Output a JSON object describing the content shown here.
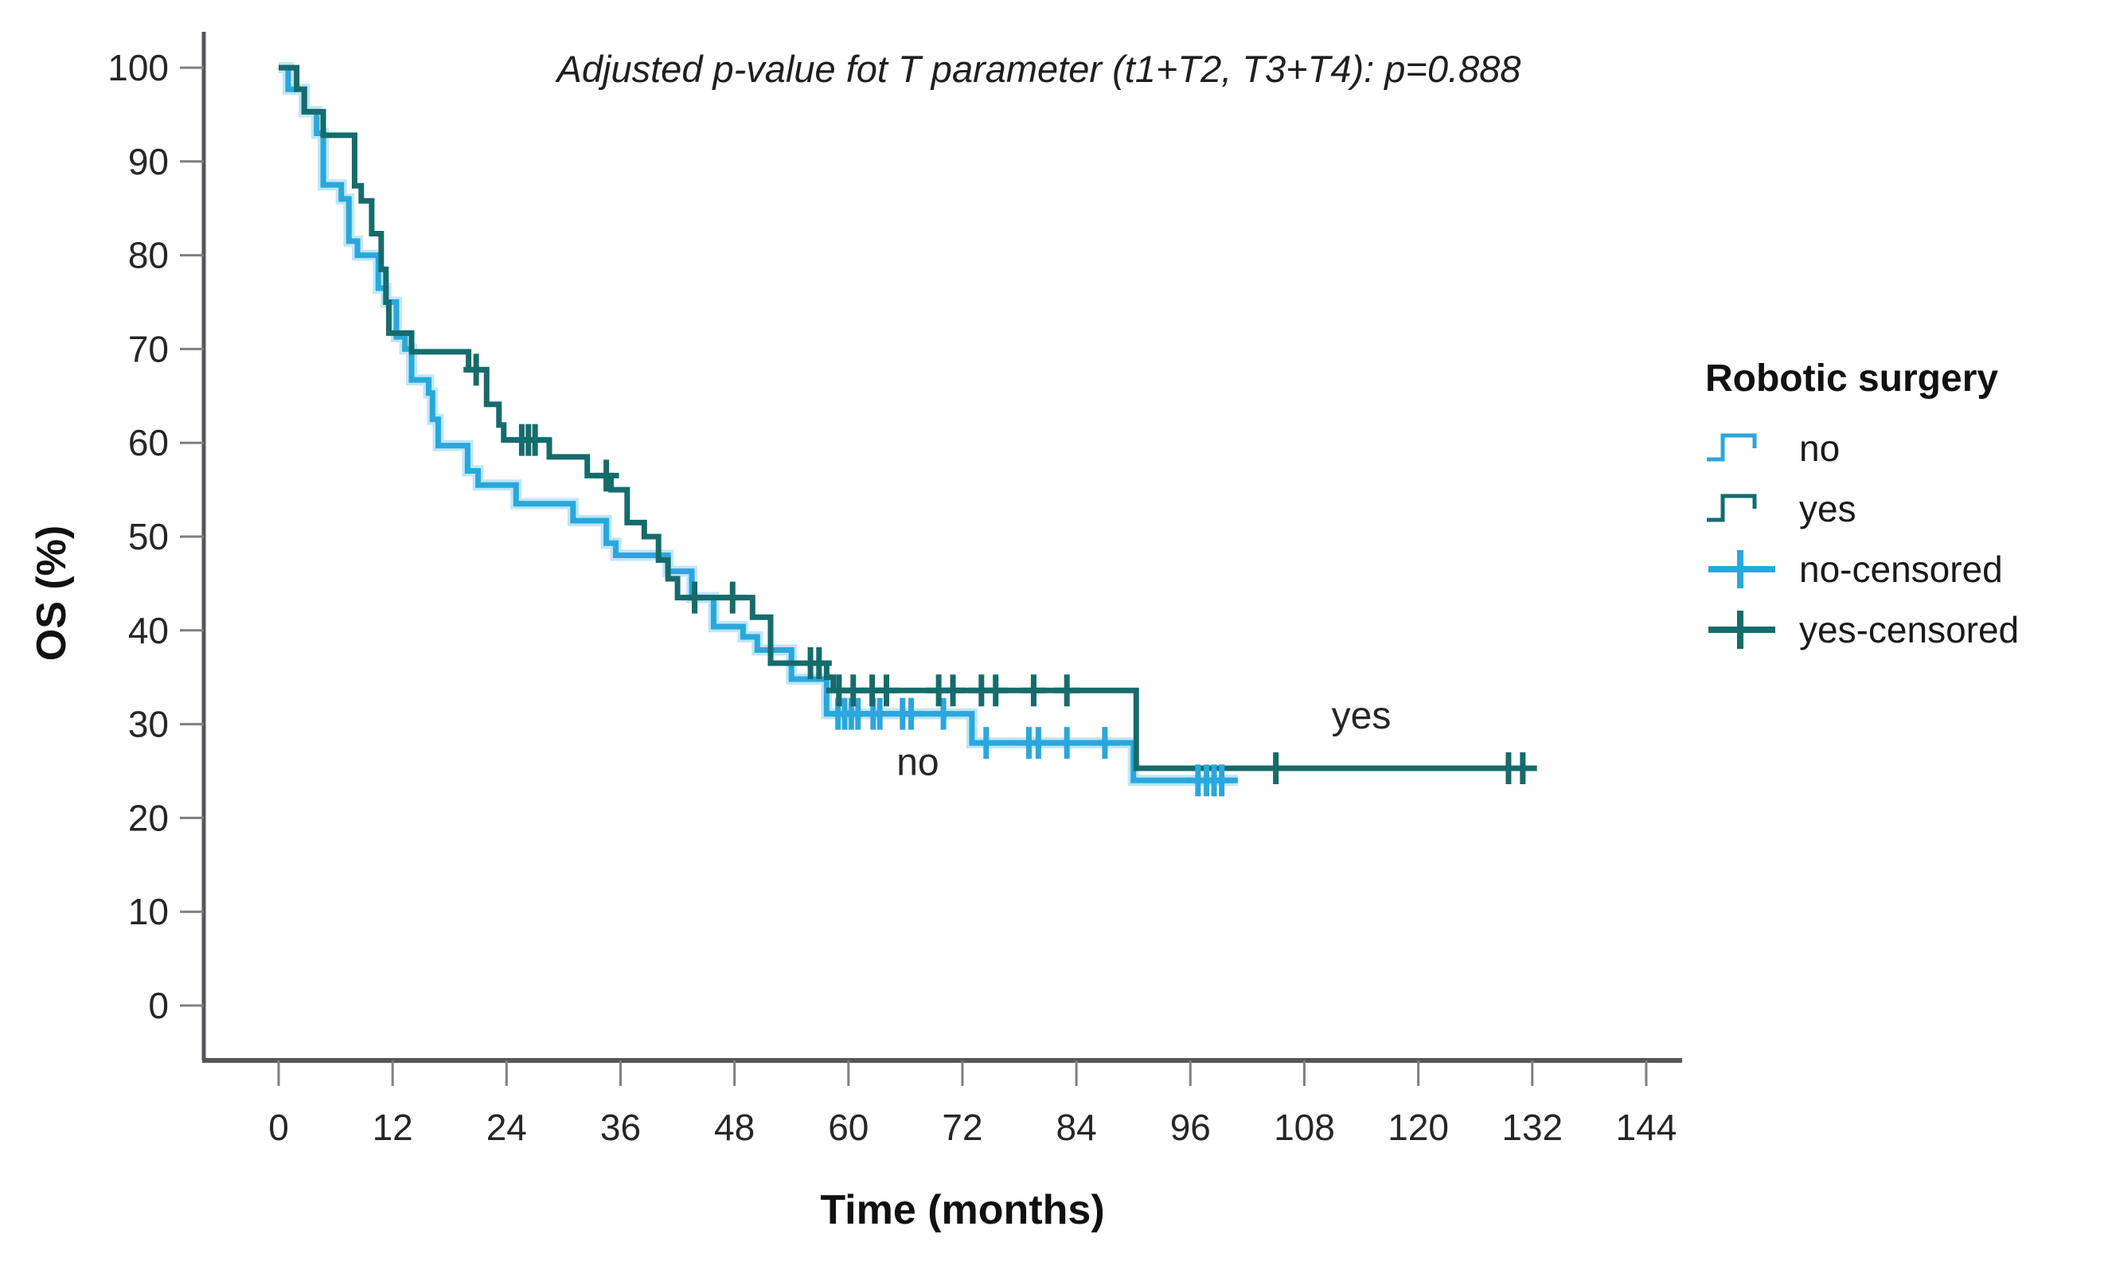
{
  "title": {
    "text": "Adjusted p-value fot T parameter (t1+T2, T3+T4): p=0.888"
  },
  "axes": {
    "y": {
      "label": "OS (%)",
      "ticks": [
        0,
        10,
        20,
        30,
        40,
        50,
        60,
        70,
        80,
        90,
        100
      ],
      "range": [
        0,
        100
      ]
    },
    "x": {
      "label": "Time (months)",
      "ticks": [
        0,
        12,
        24,
        36,
        48,
        60,
        72,
        84,
        96,
        108,
        120,
        132,
        144
      ],
      "range": [
        0,
        144
      ]
    }
  },
  "legend": {
    "title": "Robotic surgery",
    "items": [
      {
        "label": "no",
        "type": "step",
        "color": "#2AA7DC"
      },
      {
        "label": "yes",
        "type": "step",
        "color": "#166B6B"
      },
      {
        "label": "no-censored",
        "type": "plus",
        "color": "#2AA7DC"
      },
      {
        "label": "yes-censored",
        "type": "plus",
        "color": "#166B6B"
      }
    ]
  },
  "annotations": [
    {
      "text": "no",
      "t": 67.3,
      "pct": 26
    },
    {
      "text": "yes",
      "t": 114,
      "pct": 31
    }
  ],
  "colors": {
    "axis": "#55565A",
    "tick": "#7F7F7F",
    "text": "#262626",
    "no_series": "#2AA7DC",
    "no_halo": "#BEE7F7",
    "yes_series": "#166B6B"
  },
  "chart_data": {
    "type": "line",
    "subtype": "kaplan_meier_step",
    "title": "Adjusted p-value fot T parameter (t1+T2, T3+T4): p=0.888",
    "xlabel": "Time (months)",
    "ylabel": "OS (%)",
    "xlim": [
      0,
      144
    ],
    "ylim": [
      0,
      100
    ],
    "x_ticks": [
      0,
      12,
      24,
      36,
      48,
      60,
      72,
      84,
      96,
      108,
      120,
      132,
      144
    ],
    "y_ticks": [
      0,
      10,
      20,
      30,
      40,
      50,
      60,
      70,
      80,
      90,
      100
    ],
    "grid": false,
    "legend_position": "right",
    "series": [
      {
        "name": "no",
        "color": "#2AA7DC",
        "start": [
          0,
          100
        ],
        "steps": [
          [
            1,
            97.7
          ],
          [
            2.7,
            95.3
          ],
          [
            4,
            93
          ],
          [
            4.7,
            87.5
          ],
          [
            6.6,
            86
          ],
          [
            7.4,
            81.5
          ],
          [
            8.3,
            80
          ],
          [
            10.5,
            76.5
          ],
          [
            11.3,
            75
          ],
          [
            12.4,
            71.3
          ],
          [
            13.3,
            70
          ],
          [
            14,
            66.7
          ],
          [
            15.8,
            65.3
          ],
          [
            16.2,
            62.5
          ],
          [
            16.8,
            59.7
          ],
          [
            19.9,
            57
          ],
          [
            21,
            55.5
          ],
          [
            25,
            53.5
          ],
          [
            31,
            51.7
          ],
          [
            34.5,
            49.3
          ],
          [
            35.5,
            48
          ],
          [
            41,
            46.3
          ],
          [
            43.5,
            43.5
          ],
          [
            45.8,
            40.4
          ],
          [
            48.9,
            39.3
          ],
          [
            50.4,
            37.9
          ],
          [
            54,
            34.8
          ],
          [
            57.7,
            31.1
          ],
          [
            73,
            28
          ],
          [
            90,
            24
          ]
        ],
        "end_t": 101,
        "censor_marks": [
          [
            58.9,
            31.1
          ],
          [
            59.6,
            31.1
          ],
          [
            60.3,
            31.1
          ],
          [
            61,
            31.1
          ],
          [
            62.6,
            31.1
          ],
          [
            63.3,
            31.1
          ],
          [
            65.7,
            31.1
          ],
          [
            66.6,
            31.1
          ],
          [
            70,
            31.1
          ],
          [
            74.5,
            28
          ],
          [
            79,
            28
          ],
          [
            80,
            28
          ],
          [
            83,
            28
          ],
          [
            87,
            28
          ],
          [
            96.8,
            24
          ],
          [
            97.7,
            24
          ],
          [
            98.5,
            24
          ],
          [
            99.3,
            24
          ]
        ]
      },
      {
        "name": "yes",
        "color": "#166B6B",
        "start": [
          0,
          100
        ],
        "steps": [
          [
            1.9,
            97.7
          ],
          [
            2.7,
            95.3
          ],
          [
            4.7,
            92.8
          ],
          [
            8,
            87.4
          ],
          [
            8.7,
            85.8
          ],
          [
            9.8,
            82.3
          ],
          [
            10.8,
            78.5
          ],
          [
            11.3,
            75
          ],
          [
            11.6,
            71.7
          ],
          [
            14,
            69.7
          ],
          [
            20,
            67.8
          ],
          [
            21.9,
            64.1
          ],
          [
            23.2,
            61.9
          ],
          [
            23.7,
            60.3
          ],
          [
            28.5,
            58.5
          ],
          [
            32.5,
            56.5
          ],
          [
            35,
            55
          ],
          [
            36.7,
            51.5
          ],
          [
            38.5,
            50
          ],
          [
            40,
            47.5
          ],
          [
            41,
            45.5
          ],
          [
            42,
            43.5
          ],
          [
            49.9,
            41.4
          ],
          [
            51.8,
            36.5
          ],
          [
            57.7,
            35
          ],
          [
            58.4,
            33.6
          ],
          [
            90.3,
            25.3
          ]
        ],
        "end_t": 132.5,
        "censor_marks": [
          [
            20.8,
            67.8
          ],
          [
            25.6,
            60.3
          ],
          [
            26.3,
            60.3
          ],
          [
            27,
            60.3
          ],
          [
            34.5,
            56.5
          ],
          [
            43.8,
            43.5
          ],
          [
            47.8,
            43.5
          ],
          [
            56,
            36.5
          ],
          [
            56.9,
            36.5
          ],
          [
            59,
            33.6
          ],
          [
            60.5,
            33.6
          ],
          [
            62.5,
            33.6
          ],
          [
            64,
            33.6
          ],
          [
            69.5,
            33.6
          ],
          [
            71,
            33.6
          ],
          [
            74,
            33.6
          ],
          [
            75.5,
            33.6
          ],
          [
            79.5,
            33.6
          ],
          [
            83,
            33.6
          ],
          [
            105,
            25.3
          ],
          [
            129.5,
            25.3
          ],
          [
            131,
            25.3
          ]
        ]
      }
    ]
  }
}
